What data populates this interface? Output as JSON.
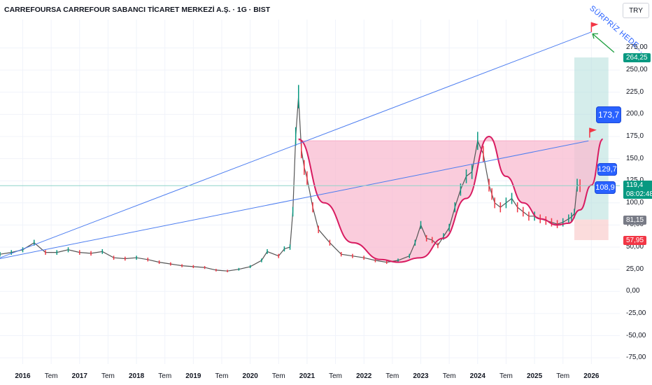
{
  "header": {
    "title": "CARREFOURSA CARREFOUR SABANCI TİCARET MERKEZİ A.Ş. · 1G · BIST",
    "currency_button": "TRY"
  },
  "chart_data": {
    "type": "line",
    "title": "CARREFOURSA CARREFOUR SABANCI TİCARET MERKEZİ A.Ş. · 1G · BIST",
    "xlabel": "",
    "ylabel": "",
    "ylim": [
      -82,
      307
    ],
    "xlim": [
      2015.6,
      2026.5
    ],
    "grid": true,
    "y_ticks": [
      "275,00",
      "250,00",
      "225,0",
      "200,0",
      "175,0",
      "150,0",
      "125,0",
      "100,0",
      "75,00",
      "50,00",
      "25,00",
      "0,00",
      "-25,00",
      "-50,00",
      "-75,00"
    ],
    "y_tick_values": [
      275,
      250,
      225,
      200,
      175,
      150,
      125,
      100,
      75,
      50,
      25,
      0,
      -25,
      -50,
      -75
    ],
    "x_ticks": [
      {
        "label": "2016",
        "x": 2016.0,
        "year": true
      },
      {
        "label": "Tem",
        "x": 2016.5,
        "year": false
      },
      {
        "label": "2017",
        "x": 2017.0,
        "year": true
      },
      {
        "label": "Tem",
        "x": 2017.5,
        "year": false
      },
      {
        "label": "2018",
        "x": 2018.0,
        "year": true
      },
      {
        "label": "Tem",
        "x": 2018.5,
        "year": false
      },
      {
        "label": "2019",
        "x": 2019.0,
        "year": true
      },
      {
        "label": "Tem",
        "x": 2019.5,
        "year": false
      },
      {
        "label": "2020",
        "x": 2020.0,
        "year": true
      },
      {
        "label": "Tem",
        "x": 2020.5,
        "year": false
      },
      {
        "label": "2021",
        "x": 2021.0,
        "year": true
      },
      {
        "label": "Tem",
        "x": 2021.5,
        "year": false
      },
      {
        "label": "2022",
        "x": 2022.0,
        "year": true
      },
      {
        "label": "Tem",
        "x": 2022.5,
        "year": false
      },
      {
        "label": "2023",
        "x": 2023.0,
        "year": true
      },
      {
        "label": "Tem",
        "x": 2023.5,
        "year": false
      },
      {
        "label": "2024",
        "x": 2024.0,
        "year": true
      },
      {
        "label": "Tem",
        "x": 2024.5,
        "year": false
      },
      {
        "label": "2025",
        "x": 2025.0,
        "year": true
      },
      {
        "label": "Tem",
        "x": 2025.5,
        "year": false
      },
      {
        "label": "2026",
        "x": 2026.0,
        "year": true
      }
    ],
    "price_series": {
      "x": [
        2015.6,
        2015.8,
        2016.0,
        2016.2,
        2016.4,
        2016.6,
        2016.8,
        2017.0,
        2017.2,
        2017.4,
        2017.6,
        2017.8,
        2018.0,
        2018.2,
        2018.4,
        2018.6,
        2018.8,
        2019.0,
        2019.2,
        2019.4,
        2019.6,
        2019.8,
        2020.0,
        2020.2,
        2020.3,
        2020.5,
        2020.6,
        2020.7,
        2020.75,
        2020.8,
        2020.85,
        2020.9,
        2020.95,
        2021.0,
        2021.1,
        2021.2,
        2021.4,
        2021.6,
        2021.8,
        2022.0,
        2022.2,
        2022.4,
        2022.6,
        2022.8,
        2022.9,
        2023.0,
        2023.1,
        2023.2,
        2023.3,
        2023.4,
        2023.5,
        2023.6,
        2023.7,
        2023.8,
        2023.9,
        2024.0,
        2024.1,
        2024.2,
        2024.25,
        2024.3,
        2024.4,
        2024.5,
        2024.6,
        2024.7,
        2024.8,
        2024.9,
        2025.0,
        2025.1,
        2025.2,
        2025.3,
        2025.4,
        2025.5,
        2025.6,
        2025.65,
        2025.7,
        2025.75,
        2025.8
      ],
      "y": [
        42,
        44,
        47,
        55,
        44,
        44,
        47,
        44,
        43,
        45,
        38,
        37,
        38,
        36,
        33,
        31,
        29,
        28,
        27,
        24,
        23,
        25,
        28,
        35,
        45,
        40,
        48,
        50,
        90,
        175,
        220,
        160,
        140,
        128,
        95,
        70,
        55,
        42,
        40,
        38,
        35,
        33,
        35,
        40,
        55,
        75,
        60,
        58,
        52,
        62,
        72,
        95,
        115,
        130,
        135,
        170,
        155,
        120,
        110,
        100,
        95,
        100,
        105,
        95,
        90,
        85,
        85,
        82,
        80,
        78,
        76,
        78,
        82,
        84,
        88,
        120,
        119.4
      ]
    },
    "cup_curves": [
      {
        "x": [
          2020.85,
          2021.3,
          2021.8,
          2022.3,
          2022.6,
          2023.0,
          2023.4,
          2023.8,
          2024.2
        ],
        "y": [
          172,
          100,
          55,
          36,
          33,
          38,
          60,
          105,
          175
        ]
      },
      {
        "x": [
          2024.2,
          2024.5,
          2024.8,
          2025.1,
          2025.4,
          2025.6,
          2025.8,
          2026.0,
          2026.2
        ],
        "y": [
          175,
          130,
          100,
          82,
          75,
          77,
          92,
          120,
          172
        ]
      }
    ],
    "annotations": [
      {
        "type": "trendline",
        "label": "",
        "x": [
          2015.6,
          2026.0
        ],
        "y": [
          38,
          293
        ]
      },
      {
        "type": "trendline",
        "label": "",
        "x": [
          2015.6,
          2025.95
        ],
        "y": [
          37,
          170
        ]
      },
      {
        "type": "horizontal",
        "label": "",
        "y": 119.4
      },
      {
        "type": "resistance_box",
        "x": [
          2020.85,
          2026.2
        ],
        "y": [
          170,
          170
        ]
      },
      {
        "type": "target",
        "label": "173,7",
        "y": 173.7
      },
      {
        "type": "target",
        "label": "129,7",
        "y": 129.7
      },
      {
        "type": "target",
        "label": "108,9",
        "y": 108.9
      },
      {
        "type": "note",
        "label": "SÜRPRİZ HEDE..."
      }
    ],
    "position": {
      "x_start": 2025.7,
      "x_end": 2026.3,
      "entry": 81.15,
      "target": 264.25,
      "stop": 57.95
    },
    "price_labels": [
      {
        "value": 264.25,
        "text": "264,25",
        "color": "#089981"
      },
      {
        "value": 119.4,
        "text": "119,4",
        "color": "#089981",
        "subtext": "08:02:48"
      },
      {
        "value": 81.15,
        "text": "81,15",
        "color": "#787b86"
      },
      {
        "value": 57.95,
        "text": "57,95",
        "color": "#f23645"
      }
    ],
    "colors": {
      "trendline": "#4c7df0",
      "cup": "#d81b60",
      "cup_fill": "#f8bbd0",
      "target_zone": "#b2dfdb",
      "stop_zone": "#f8c4c4",
      "candle_up": "#089981",
      "candle_down": "#f23645",
      "grid": "#f0f3fa",
      "bubble": "#2962ff"
    }
  },
  "targets": {
    "t1": "173,7",
    "t2": "129,7",
    "t3": "108,9",
    "note": "SÜRPRİZ HEDE..."
  }
}
